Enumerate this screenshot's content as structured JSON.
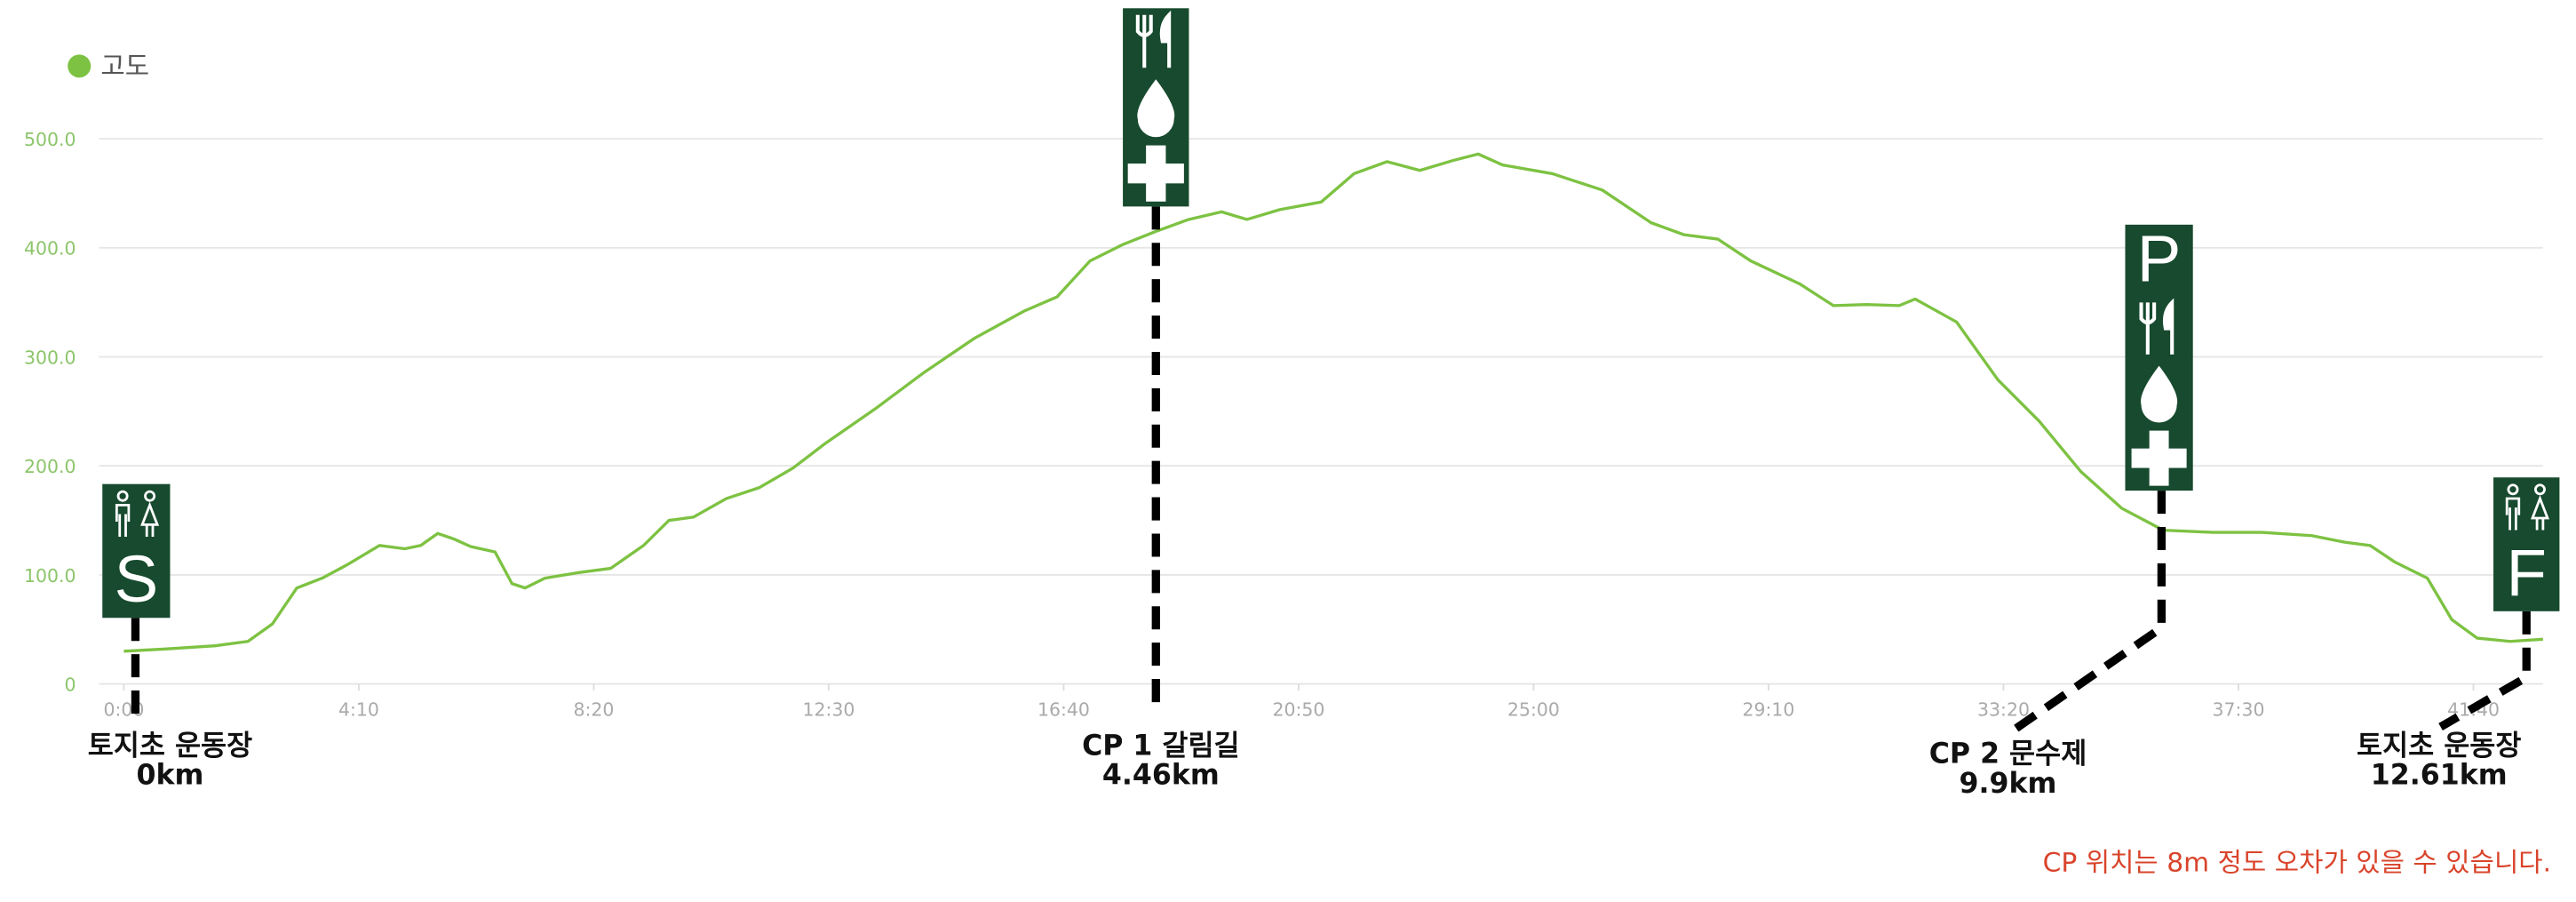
{
  "chart_data": {
    "type": "line",
    "x": [
      0,
      44,
      97,
      132,
      158,
      184,
      211,
      237,
      272,
      299,
      316,
      334,
      351,
      369,
      395,
      413,
      427,
      448,
      483,
      518,
      553,
      580,
      606,
      641,
      676,
      712,
      747,
      799,
      852,
      905,
      958,
      993,
      1028,
      1063,
      1098,
      1133,
      1168,
      1195,
      1230,
      1274,
      1309,
      1344,
      1379,
      1414,
      1441,
      1467,
      1520,
      1573,
      1625,
      1660,
      1696,
      1731,
      1783,
      1819,
      1854,
      1889,
      1906,
      1950,
      1994,
      2038,
      2082,
      2126,
      2170,
      2223,
      2275,
      2328,
      2363,
      2390,
      2416,
      2451,
      2477,
      2504,
      2539,
      2574
    ],
    "series": [
      {
        "name": "고도",
        "color": "#7dc242",
        "values": [
          30,
          32,
          35,
          39,
          55,
          88,
          97,
          109,
          127,
          124,
          127,
          138,
          133,
          126,
          121,
          92,
          88,
          97,
          102,
          106,
          127,
          150,
          153,
          170,
          180,
          198,
          221,
          252,
          286,
          317,
          342,
          355,
          388,
          403,
          415,
          426,
          433,
          426,
          435,
          442,
          468,
          479,
          471,
          480,
          486,
          476,
          468,
          453,
          423,
          412,
          408,
          388,
          367,
          347,
          348,
          347,
          353,
          332,
          279,
          241,
          195,
          161,
          141,
          139,
          139,
          136,
          130,
          127,
          112,
          97,
          59,
          42,
          39,
          41
        ]
      }
    ],
    "xlim": [
      0,
      2574
    ],
    "xticks": [
      {
        "value": 0,
        "label": "0:00"
      },
      {
        "value": 250,
        "label": "4:10"
      },
      {
        "value": 500,
        "label": "8:20"
      },
      {
        "value": 750,
        "label": "12:30"
      },
      {
        "value": 1000,
        "label": "16:40"
      },
      {
        "value": 1250,
        "label": "20:50"
      },
      {
        "value": 1500,
        "label": "25:00"
      },
      {
        "value": 1750,
        "label": "29:10"
      },
      {
        "value": 2000,
        "label": "33:20"
      },
      {
        "value": 2250,
        "label": "37:30"
      },
      {
        "value": 2500,
        "label": "41:40"
      }
    ],
    "ylim": [
      0,
      500
    ],
    "yticks": [
      0,
      {
        "value": 100,
        "label": "100.0"
      },
      {
        "value": 200,
        "label": "200.0"
      },
      {
        "value": 300,
        "label": "300.0"
      },
      {
        "value": 400,
        "label": "400.0"
      },
      {
        "value": 500,
        "label": "500.0"
      }
    ],
    "grid": true,
    "legend": "top-left",
    "annotations": [
      {
        "sign": "S",
        "name": "토지초 운동장",
        "distance": "0km"
      },
      {
        "name": "CP 1 갈림길",
        "distance": "4.46km"
      },
      {
        "sign": "P",
        "name": "CP 2 문수제",
        "distance": "9.9km"
      },
      {
        "sign": "F",
        "name": "토지초 운동장",
        "distance": "12.61km"
      }
    ],
    "note": "CP 위치는 8m 정도 오차가 있을 수 있습니다."
  }
}
